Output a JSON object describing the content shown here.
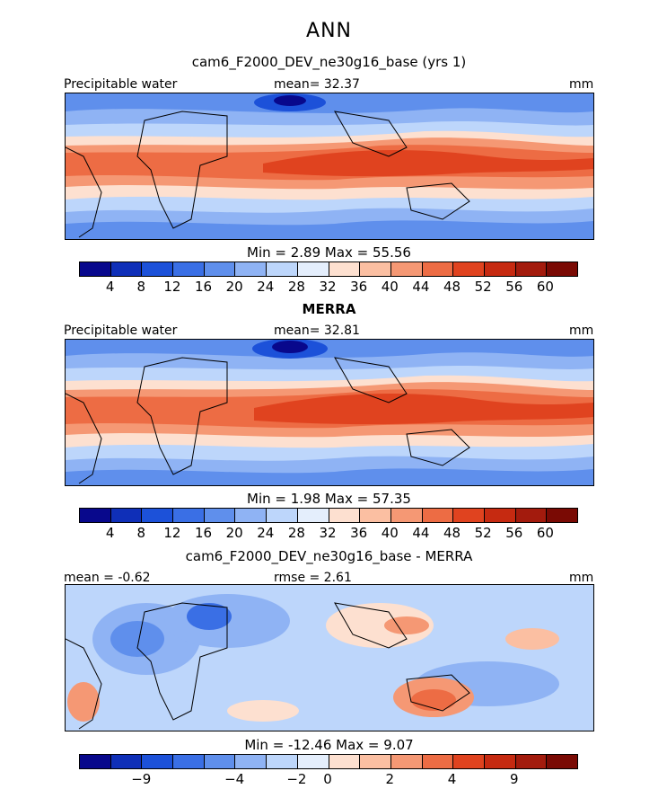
{
  "suptitle": "ANN",
  "palette_abs": [
    "#08088c",
    "#0f2fb8",
    "#1c51d9",
    "#3a6fe5",
    "#5f8fec",
    "#8fb3f4",
    "#bdd6fb",
    "#e4eefc",
    "#fde0d0",
    "#fbbfa2",
    "#f59874",
    "#ed6c44",
    "#e0431f",
    "#c62a11",
    "#a31b0d",
    "#7a0a04"
  ],
  "palette_diff": [
    "#08088c",
    "#0f2fb8",
    "#1c51d9",
    "#3a6fe5",
    "#5f8fec",
    "#8fb3f4",
    "#bdd6fb",
    "#e4eefc",
    "#fde0d0",
    "#fbbfa2",
    "#f59874",
    "#ed6c44",
    "#e0431f",
    "#c62a11",
    "#a31b0d",
    "#7a0a04"
  ],
  "panels": [
    {
      "title": "cam6_F2000_DEV_ne30g16_base (yrs 1)",
      "left_label": "Precipitable water",
      "center_label": "mean=  32.37",
      "right_label": "mm",
      "minmax": "Min =     2.89  Max =    55.56",
      "ticks": [
        "4",
        "8",
        "12",
        "16",
        "20",
        "24",
        "28",
        "32",
        "36",
        "40",
        "44",
        "48",
        "52",
        "56",
        "60"
      ]
    },
    {
      "title": "MERRA",
      "left_label": "Precipitable water",
      "center_label": "mean=  32.81",
      "right_label": "mm",
      "minmax": "Min =     1.98  Max =    57.35",
      "ticks": [
        "4",
        "8",
        "12",
        "16",
        "20",
        "24",
        "28",
        "32",
        "36",
        "40",
        "44",
        "48",
        "52",
        "56",
        "60"
      ]
    },
    {
      "title": "cam6_F2000_DEV_ne30g16_base - MERRA",
      "left_label": "mean =  -0.62",
      "center_label": "rmse =    2.61",
      "right_label": "mm",
      "minmax": "Min = -12.46  Max =     9.07",
      "ticks": [
        "-9",
        "-4",
        "-2",
        "0",
        "2",
        "4",
        "9"
      ]
    }
  ]
}
